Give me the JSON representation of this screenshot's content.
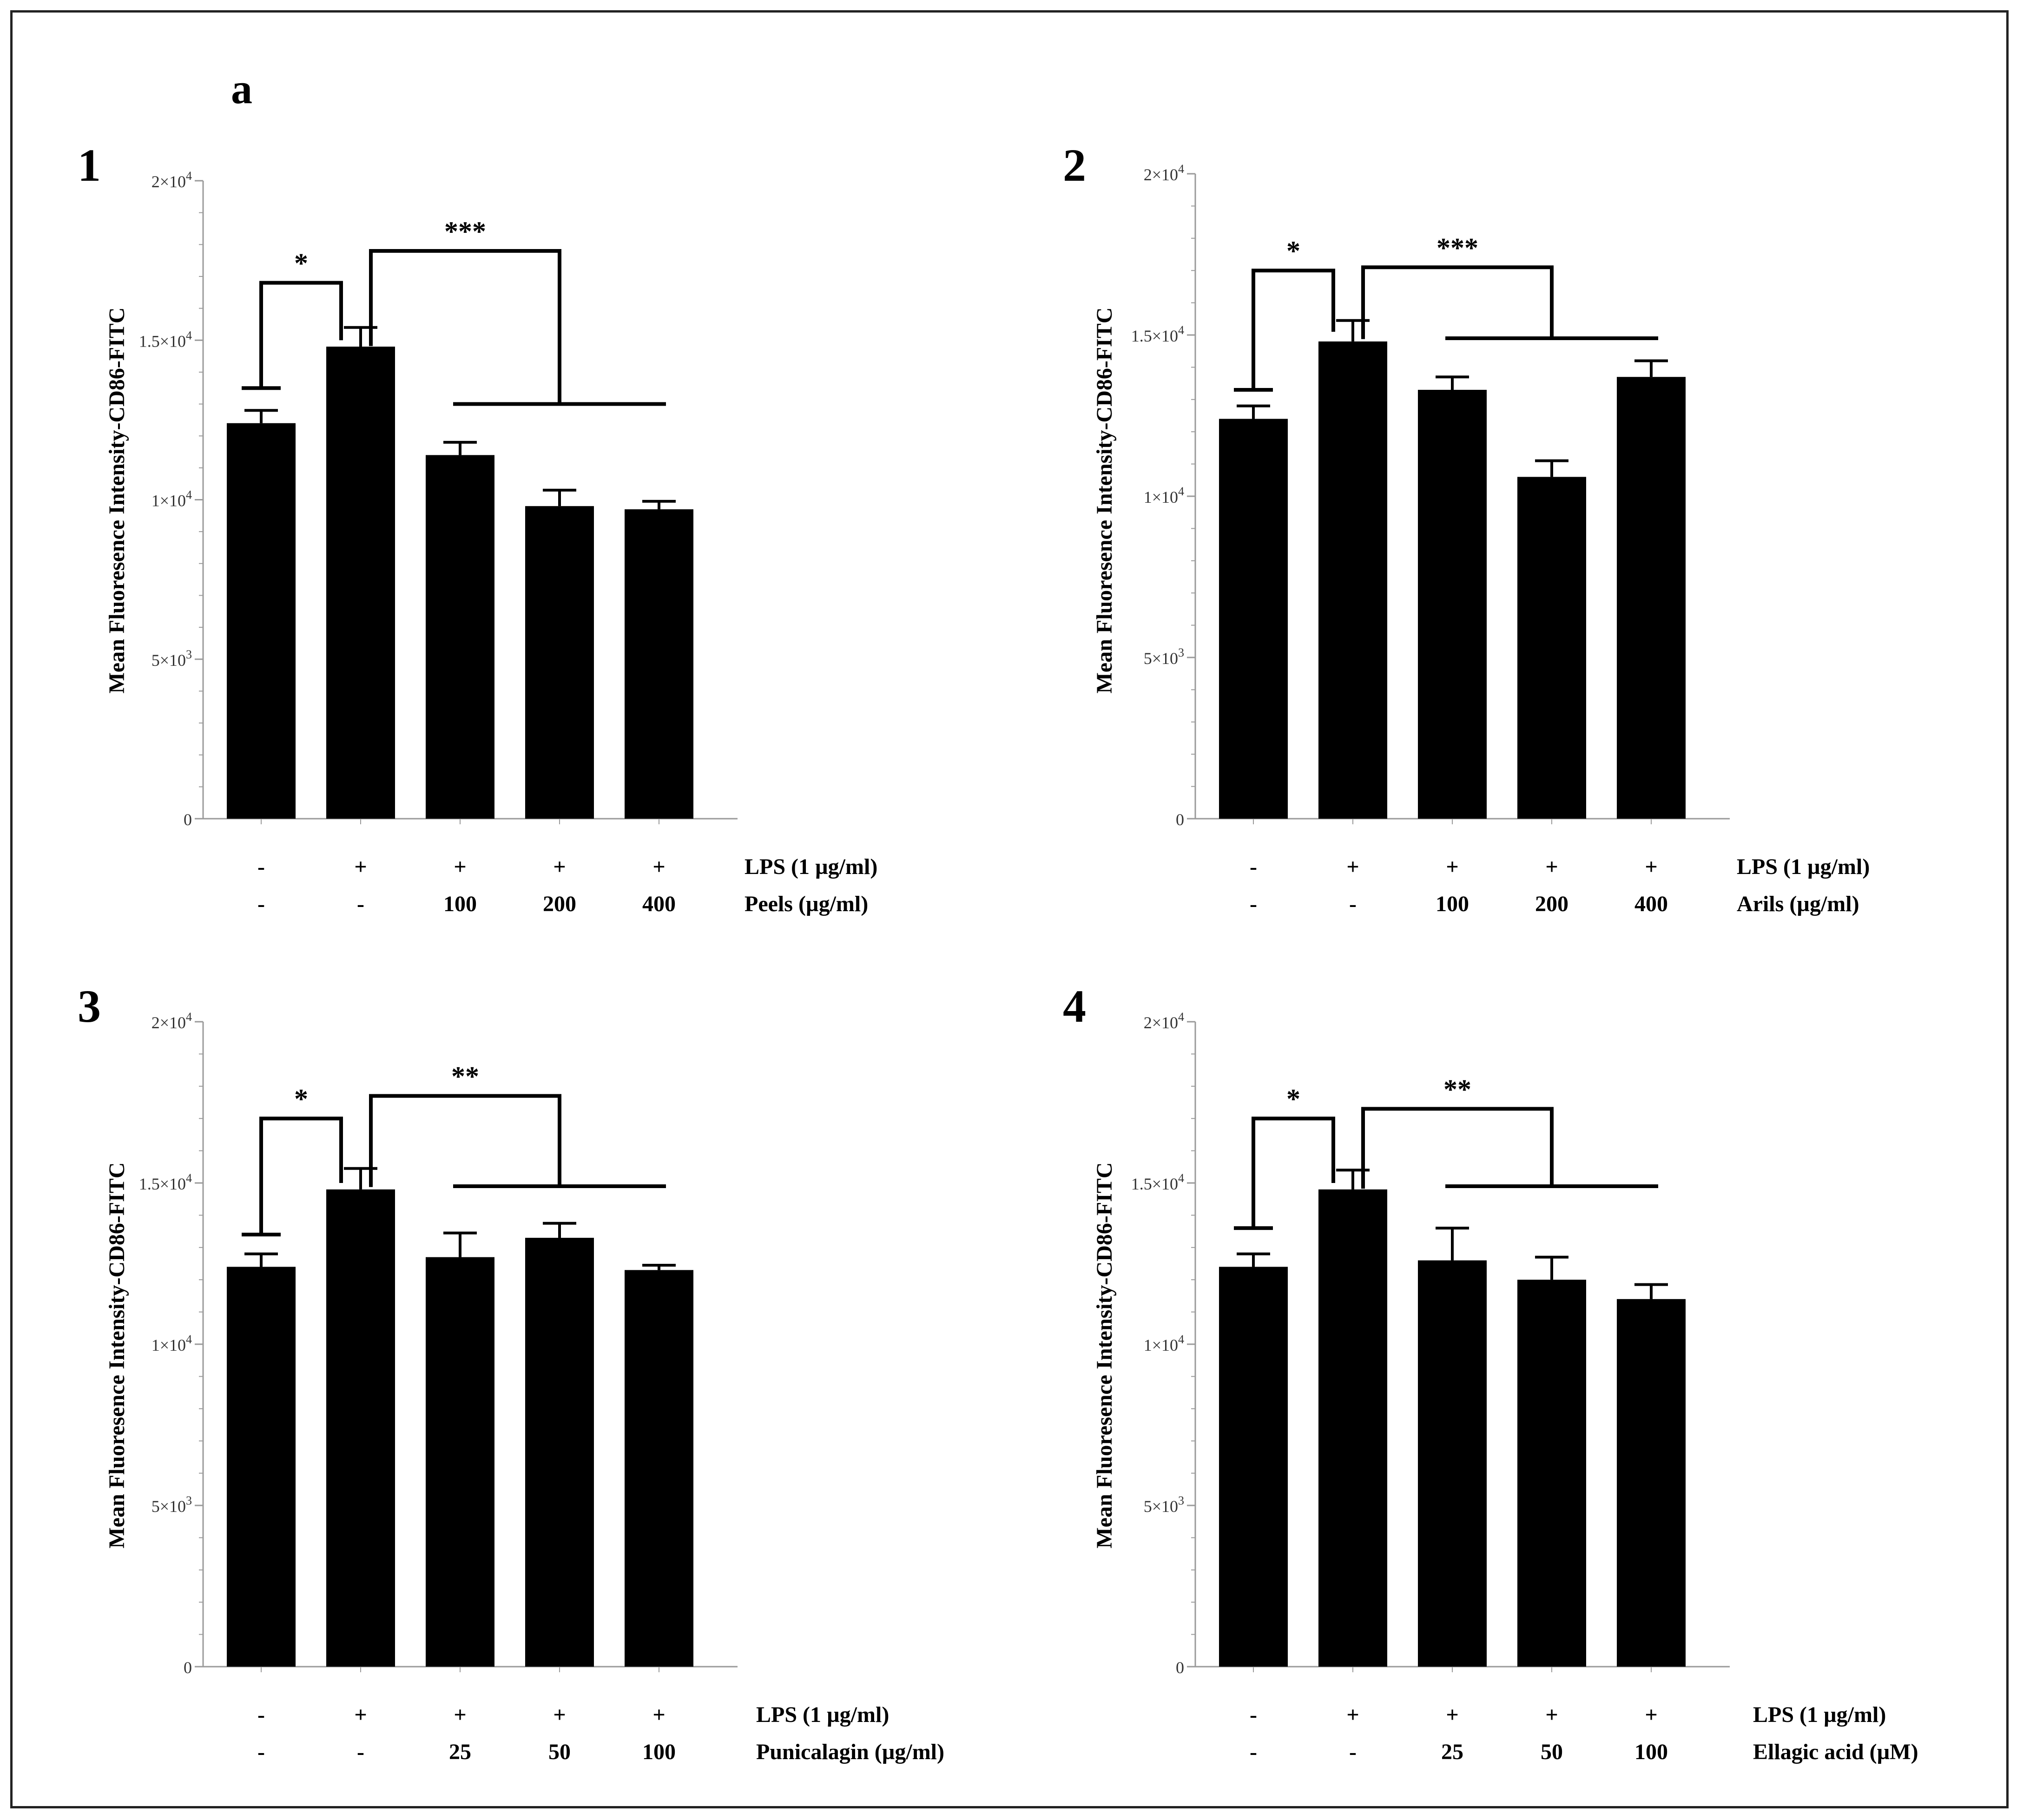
{
  "figure": {
    "panel_letter": "a",
    "colors": {
      "bar": "#000000",
      "axis": "#9a9a9a",
      "ink": "#000000",
      "border": "#222222"
    }
  },
  "chart_data": [
    {
      "type": "bar",
      "panel_number": "1",
      "ylabel": "Mean Fluoresence Intensity-CD86-FITC",
      "ylim": [
        0,
        20000
      ],
      "yticks": [
        {
          "value": 0,
          "mant": "0",
          "exp": ""
        },
        {
          "value": 5000,
          "mant": "5×10",
          "exp": "3"
        },
        {
          "value": 10000,
          "mant": "1×10",
          "exp": "4"
        },
        {
          "value": 15000,
          "mant": "1.5×10",
          "exp": "4"
        },
        {
          "value": 20000,
          "mant": "2×10",
          "exp": "4"
        }
      ],
      "values": [
        12400,
        14800,
        11400,
        9800,
        9700
      ],
      "errors": [
        400,
        600,
        400,
        500,
        250
      ],
      "row1_label": "LPS  (1 µg/ml)",
      "row1": [
        "-",
        "+",
        "+",
        "+",
        "+"
      ],
      "row2_label": "Peels (µg/ml)",
      "row2": [
        "-",
        "-",
        "100",
        "200",
        "400"
      ],
      "sig1": {
        "label": "*",
        "top": 16800,
        "left_end": 13500,
        "right_end": 15000
      },
      "sig2": {
        "label": "***",
        "top": 17800,
        "group_y": 13000
      }
    },
    {
      "type": "bar",
      "panel_number": "2",
      "ylabel": "Mean Fluoresence Intensity-CD86-FITC",
      "ylim": [
        0,
        20000
      ],
      "yticks": [
        {
          "value": 0,
          "mant": "0",
          "exp": ""
        },
        {
          "value": 5000,
          "mant": "5×10",
          "exp": "3"
        },
        {
          "value": 10000,
          "mant": "1×10",
          "exp": "4"
        },
        {
          "value": 15000,
          "mant": "1.5×10",
          "exp": "4"
        },
        {
          "value": 20000,
          "mant": "2×10",
          "exp": "4"
        }
      ],
      "values": [
        12400,
        14800,
        13300,
        10600,
        13700
      ],
      "errors": [
        400,
        650,
        400,
        500,
        500
      ],
      "row1_label": "LPS  (1 µg/ml)",
      "row1": [
        "-",
        "+",
        "+",
        "+",
        "+"
      ],
      "row2_label": "Arils (µg/ml)",
      "row2": [
        "-",
        "-",
        "100",
        "200",
        "400"
      ],
      "sig1": {
        "label": "*",
        "top": 17000,
        "left_end": 13300,
        "right_end": 15100
      },
      "sig2": {
        "label": "***",
        "top": 17100,
        "group_y": 14900
      }
    },
    {
      "type": "bar",
      "panel_number": "3",
      "ylabel": "Mean Fluoresence Intensity-CD86-FITC",
      "ylim": [
        0,
        20000
      ],
      "yticks": [
        {
          "value": 0,
          "mant": "0",
          "exp": ""
        },
        {
          "value": 5000,
          "mant": "5×10",
          "exp": "3"
        },
        {
          "value": 10000,
          "mant": "1×10",
          "exp": "4"
        },
        {
          "value": 15000,
          "mant": "1.5×10",
          "exp": "4"
        },
        {
          "value": 20000,
          "mant": "2×10",
          "exp": "4"
        }
      ],
      "values": [
        12400,
        14800,
        12700,
        13300,
        12300
      ],
      "errors": [
        400,
        650,
        750,
        450,
        150
      ],
      "row1_label": "LPS  (1 µg/ml)",
      "row1": [
        "-",
        "+",
        "+",
        "+",
        "+"
      ],
      "row2_label": "Punicalagin (µg/ml)",
      "row2": [
        "-",
        "-",
        "25",
        "50",
        "100"
      ],
      "sig1": {
        "label": "*",
        "top": 17000,
        "left_end": 13400,
        "right_end": 15000
      },
      "sig2": {
        "label": "**",
        "top": 17700,
        "group_y": 14900
      }
    },
    {
      "type": "bar",
      "panel_number": "4",
      "ylabel": "Mean Fluoresence Intensity-CD86-FITC",
      "ylim": [
        0,
        20000
      ],
      "yticks": [
        {
          "value": 0,
          "mant": "0",
          "exp": ""
        },
        {
          "value": 5000,
          "mant": "5×10",
          "exp": "3"
        },
        {
          "value": 10000,
          "mant": "1×10",
          "exp": "4"
        },
        {
          "value": 15000,
          "mant": "1.5×10",
          "exp": "4"
        },
        {
          "value": 20000,
          "mant": "2×10",
          "exp": "4"
        }
      ],
      "values": [
        12400,
        14800,
        12600,
        12000,
        11400
      ],
      "errors": [
        400,
        600,
        1000,
        700,
        450
      ],
      "row1_label": "LPS  (1 µg/ml)",
      "row1": [
        "-",
        "+",
        "+",
        "+",
        "+"
      ],
      "row2_label": "Ellagic acid (µM)",
      "row2": [
        "-",
        "-",
        "25",
        "50",
        "100"
      ],
      "sig1": {
        "label": "*",
        "top": 17000,
        "left_end": 13600,
        "right_end": 15000
      },
      "sig2": {
        "label": "**",
        "top": 17300,
        "group_y": 14900
      }
    }
  ]
}
